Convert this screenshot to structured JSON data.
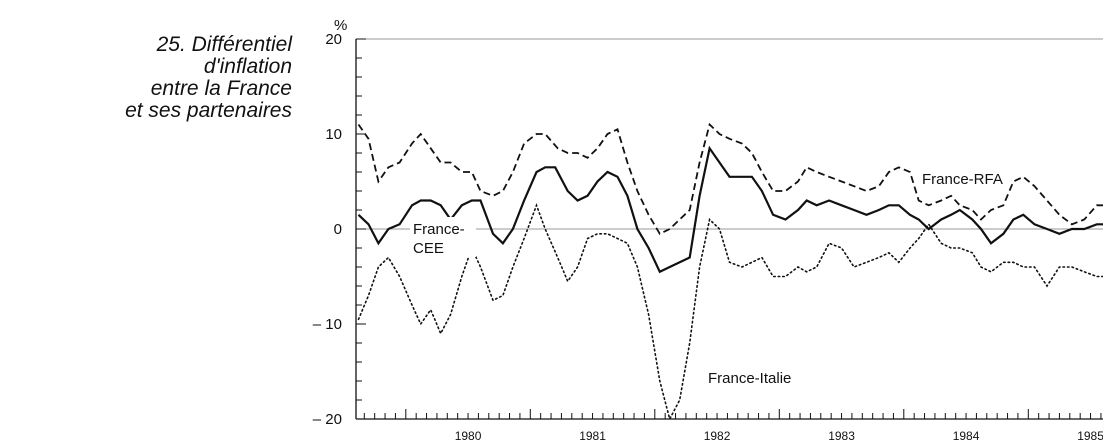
{
  "title_lines": [
    "25. Différentiel",
    "d'inflation",
    "entre la France",
    "et ses partenaires"
  ],
  "chart_data": {
    "type": "line",
    "title": "25. Différentiel d'inflation entre la France et ses partenaires",
    "ylabel": "%",
    "xlabel": "",
    "ylim": [
      -20,
      20
    ],
    "yticks": [
      20,
      10,
      0,
      -10,
      -20
    ],
    "ytick_labels": [
      "20",
      "10",
      "0",
      "– 10",
      "– 20"
    ],
    "xlim": [
      1979.6,
      1985.6
    ],
    "xtick_labels": [
      "1980",
      "1981",
      "1982",
      "1983",
      "1984",
      "1985"
    ],
    "grid": false,
    "series": [
      {
        "name": "France-RFA",
        "style": "dashed",
        "points": [
          [
            1979.62,
            11
          ],
          [
            1979.7,
            9.5
          ],
          [
            1979.78,
            5
          ],
          [
            1979.86,
            6.5
          ],
          [
            1979.95,
            7
          ],
          [
            1980.05,
            9
          ],
          [
            1980.12,
            10
          ],
          [
            1980.2,
            8.5
          ],
          [
            1980.28,
            7
          ],
          [
            1980.36,
            7
          ],
          [
            1980.45,
            6
          ],
          [
            1980.53,
            6
          ],
          [
            1980.6,
            4
          ],
          [
            1980.7,
            3.5
          ],
          [
            1980.78,
            4
          ],
          [
            1980.86,
            6
          ],
          [
            1980.95,
            9
          ],
          [
            1981.05,
            10
          ],
          [
            1981.12,
            10
          ],
          [
            1981.22,
            8.5
          ],
          [
            1981.3,
            8
          ],
          [
            1981.38,
            8
          ],
          [
            1981.46,
            7.5
          ],
          [
            1981.54,
            8.5
          ],
          [
            1981.62,
            10
          ],
          [
            1981.7,
            10.5
          ],
          [
            1981.78,
            7
          ],
          [
            1981.86,
            4
          ],
          [
            1981.95,
            1.5
          ],
          [
            1982.04,
            -0.5
          ],
          [
            1982.12,
            0
          ],
          [
            1982.2,
            1
          ],
          [
            1982.28,
            2
          ],
          [
            1982.36,
            7
          ],
          [
            1982.44,
            11
          ],
          [
            1982.52,
            10
          ],
          [
            1982.6,
            9.5
          ],
          [
            1982.7,
            9
          ],
          [
            1982.78,
            8
          ],
          [
            1982.86,
            6
          ],
          [
            1982.95,
            4
          ],
          [
            1983.05,
            4
          ],
          [
            1983.15,
            5
          ],
          [
            1983.22,
            6.5
          ],
          [
            1983.3,
            6
          ],
          [
            1983.4,
            5.5
          ],
          [
            1983.5,
            5
          ],
          [
            1983.6,
            4.5
          ],
          [
            1983.7,
            4
          ],
          [
            1983.8,
            4.5
          ],
          [
            1983.88,
            6
          ],
          [
            1983.96,
            6.5
          ],
          [
            1984.05,
            6
          ],
          [
            1984.12,
            3
          ],
          [
            1984.2,
            2.5
          ],
          [
            1984.3,
            3
          ],
          [
            1984.38,
            3.5
          ],
          [
            1984.45,
            2.5
          ],
          [
            1984.55,
            2
          ],
          [
            1984.62,
            1
          ],
          [
            1984.7,
            2
          ],
          [
            1984.8,
            2.5
          ],
          [
            1984.88,
            5
          ],
          [
            1984.96,
            5.5
          ],
          [
            1985.05,
            4.5
          ],
          [
            1985.15,
            3
          ],
          [
            1985.25,
            1.5
          ],
          [
            1985.35,
            0.5
          ],
          [
            1985.45,
            1
          ],
          [
            1985.55,
            2.5
          ],
          [
            1985.6,
            2.5
          ]
        ]
      },
      {
        "name": "France-CEE",
        "style": "solid",
        "points": [
          [
            1979.62,
            1.5
          ],
          [
            1979.7,
            0.5
          ],
          [
            1979.78,
            -1.5
          ],
          [
            1979.86,
            0
          ],
          [
            1979.95,
            0.5
          ],
          [
            1980.05,
            2.5
          ],
          [
            1980.12,
            3
          ],
          [
            1980.2,
            3
          ],
          [
            1980.28,
            2.5
          ],
          [
            1980.36,
            1
          ],
          [
            1980.45,
            2.5
          ],
          [
            1980.53,
            3
          ],
          [
            1980.6,
            3
          ],
          [
            1980.7,
            -0.5
          ],
          [
            1980.78,
            -1.5
          ],
          [
            1980.86,
            0
          ],
          [
            1980.95,
            3
          ],
          [
            1981.05,
            6
          ],
          [
            1981.12,
            6.5
          ],
          [
            1981.2,
            6.5
          ],
          [
            1981.3,
            4
          ],
          [
            1981.38,
            3
          ],
          [
            1981.46,
            3.5
          ],
          [
            1981.54,
            5
          ],
          [
            1981.62,
            6
          ],
          [
            1981.7,
            5.5
          ],
          [
            1981.78,
            3.5
          ],
          [
            1981.86,
            0
          ],
          [
            1981.95,
            -2
          ],
          [
            1982.04,
            -4.5
          ],
          [
            1982.12,
            -4
          ],
          [
            1982.2,
            -3.5
          ],
          [
            1982.28,
            -3
          ],
          [
            1982.36,
            3.5
          ],
          [
            1982.44,
            8.5
          ],
          [
            1982.52,
            7
          ],
          [
            1982.6,
            5.5
          ],
          [
            1982.7,
            5.5
          ],
          [
            1982.78,
            5.5
          ],
          [
            1982.86,
            4
          ],
          [
            1982.95,
            1.5
          ],
          [
            1983.05,
            1
          ],
          [
            1983.15,
            2
          ],
          [
            1983.22,
            3
          ],
          [
            1983.3,
            2.5
          ],
          [
            1983.4,
            3
          ],
          [
            1983.5,
            2.5
          ],
          [
            1983.6,
            2
          ],
          [
            1983.7,
            1.5
          ],
          [
            1983.8,
            2
          ],
          [
            1983.88,
            2.5
          ],
          [
            1983.96,
            2.5
          ],
          [
            1984.05,
            1.5
          ],
          [
            1984.12,
            1
          ],
          [
            1984.2,
            0
          ],
          [
            1984.3,
            1
          ],
          [
            1984.38,
            1.5
          ],
          [
            1984.45,
            2
          ],
          [
            1984.55,
            1
          ],
          [
            1984.62,
            0
          ],
          [
            1984.7,
            -1.5
          ],
          [
            1984.8,
            -0.5
          ],
          [
            1984.88,
            1
          ],
          [
            1984.96,
            1.5
          ],
          [
            1985.05,
            0.5
          ],
          [
            1985.15,
            0
          ],
          [
            1985.25,
            -0.5
          ],
          [
            1985.35,
            0
          ],
          [
            1985.45,
            0
          ],
          [
            1985.55,
            0.5
          ],
          [
            1985.6,
            0.5
          ]
        ]
      },
      {
        "name": "France-Italie",
        "style": "dotted",
        "points": [
          [
            1979.62,
            -9.5
          ],
          [
            1979.7,
            -7
          ],
          [
            1979.78,
            -4
          ],
          [
            1979.86,
            -3
          ],
          [
            1979.95,
            -5
          ],
          [
            1980.05,
            -8
          ],
          [
            1980.12,
            -10
          ],
          [
            1980.2,
            -8.5
          ],
          [
            1980.28,
            -11
          ],
          [
            1980.36,
            -9
          ],
          [
            1980.45,
            -5
          ],
          [
            1980.53,
            -2
          ],
          [
            1980.6,
            -4
          ],
          [
            1980.7,
            -7.5
          ],
          [
            1980.78,
            -7
          ],
          [
            1980.86,
            -4
          ],
          [
            1980.95,
            -1
          ],
          [
            1981.05,
            2.5
          ],
          [
            1981.12,
            0
          ],
          [
            1981.22,
            -3
          ],
          [
            1981.3,
            -5.5
          ],
          [
            1981.38,
            -4
          ],
          [
            1981.46,
            -1
          ],
          [
            1981.54,
            -0.5
          ],
          [
            1981.62,
            -0.5
          ],
          [
            1981.7,
            -1
          ],
          [
            1981.78,
            -1.5
          ],
          [
            1981.86,
            -4
          ],
          [
            1981.95,
            -9
          ],
          [
            1982.04,
            -16
          ],
          [
            1982.12,
            -20
          ],
          [
            1982.2,
            -18
          ],
          [
            1982.28,
            -12
          ],
          [
            1982.36,
            -4
          ],
          [
            1982.44,
            1
          ],
          [
            1982.52,
            0
          ],
          [
            1982.6,
            -3.5
          ],
          [
            1982.7,
            -4
          ],
          [
            1982.78,
            -3.5
          ],
          [
            1982.86,
            -3
          ],
          [
            1982.95,
            -5
          ],
          [
            1983.05,
            -5
          ],
          [
            1983.15,
            -4
          ],
          [
            1983.22,
            -4.5
          ],
          [
            1983.3,
            -4
          ],
          [
            1983.4,
            -1.5
          ],
          [
            1983.5,
            -2
          ],
          [
            1983.6,
            -4
          ],
          [
            1983.7,
            -3.5
          ],
          [
            1983.8,
            -3
          ],
          [
            1983.88,
            -2.5
          ],
          [
            1983.96,
            -3.5
          ],
          [
            1984.05,
            -2
          ],
          [
            1984.12,
            -1
          ],
          [
            1984.2,
            0.5
          ],
          [
            1984.3,
            -1.5
          ],
          [
            1984.38,
            -2
          ],
          [
            1984.45,
            -2
          ],
          [
            1984.55,
            -2.5
          ],
          [
            1984.62,
            -4
          ],
          [
            1984.7,
            -4.5
          ],
          [
            1984.8,
            -3.5
          ],
          [
            1984.88,
            -3.5
          ],
          [
            1984.96,
            -4
          ],
          [
            1985.05,
            -4
          ],
          [
            1985.15,
            -6
          ],
          [
            1985.25,
            -4
          ],
          [
            1985.35,
            -4
          ],
          [
            1985.45,
            -4.5
          ],
          [
            1985.55,
            -5
          ],
          [
            1985.6,
            -5
          ]
        ]
      }
    ],
    "annotations": [
      {
        "text": "France-RFA",
        "series": "France-RFA"
      },
      {
        "text": "France-",
        "series": "France-CEE"
      },
      {
        "text": "CEE",
        "series": "France-CEE"
      },
      {
        "text": "France-Italie",
        "series": "France-Italie"
      }
    ]
  }
}
